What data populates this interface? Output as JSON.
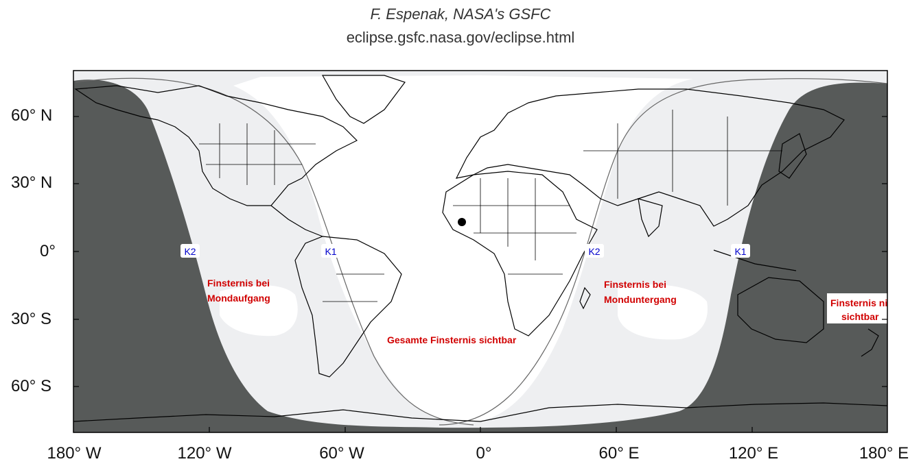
{
  "credit": {
    "author": "F. Espenak, NASA's GSFC",
    "url": "eclipse.gsfc.nasa.gov/eclipse.html"
  },
  "axes": {
    "latitude_labels": [
      "60° N",
      "30° N",
      "0°",
      "30° S",
      "60° S"
    ],
    "longitude_labels": [
      "180° W",
      "120° W",
      "60° W",
      "0°",
      "60° E",
      "120° E",
      "180° E"
    ]
  },
  "contact_labels": {
    "k2_west": "K2",
    "k1_west": "K1",
    "k2_east": "K2",
    "k1_east": "K1"
  },
  "regions": {
    "moonrise": [
      "Finsternis bei",
      "Mondaufgang"
    ],
    "moonset": [
      "Finsternis bei",
      "Monduntergang"
    ],
    "total": [
      "Gesamte Finsternis sichtbar"
    ],
    "not_visible": [
      "Finsternis nicht",
      "sichtbar"
    ]
  },
  "colors": {
    "not_visible": "#575a59",
    "partial_visibility": "#eeeff1",
    "full_visibility": "#ffffff",
    "border_lines": "#000000",
    "label_red": "#d10000",
    "label_blue": "#0000cc"
  }
}
